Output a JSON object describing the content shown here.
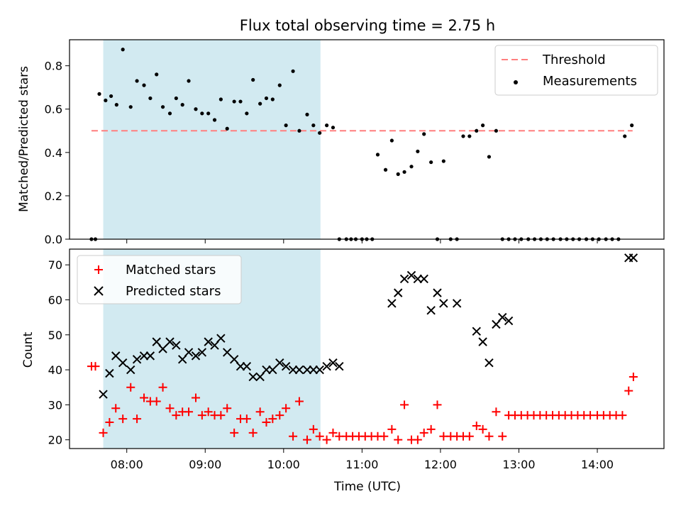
{
  "chart_data": [
    {
      "type": "scatter",
      "title": "Flux total observing time = 2.75 h",
      "ylabel": "Matched/Predicted stars",
      "xlabel": "",
      "xlim": [
        7.27,
        14.85
      ],
      "ylim": [
        0,
        0.92
      ],
      "yticks": [
        "0.0",
        "0.2",
        "0.4",
        "0.6",
        "0.8"
      ],
      "ytick_values": [
        0,
        0.2,
        0.4,
        0.6,
        0.8
      ],
      "xtick_values": [
        8,
        9,
        10,
        11,
        12,
        13,
        14
      ],
      "shaded_region": {
        "x_start": 7.7,
        "x_end": 10.47,
        "color": "#add8e6"
      },
      "legend_position": "top-right",
      "grid": false,
      "threshold": {
        "name": "Threshold",
        "value": 0.5,
        "x_range": [
          7.55,
          14.45
        ],
        "color": "#ff7f7f",
        "style": "dashed"
      },
      "series": [
        {
          "name": "Measurements",
          "color": "#000000",
          "marker": "dot",
          "x": [
            7.55,
            7.6,
            7.65,
            7.73,
            7.8,
            7.87,
            7.95,
            8.05,
            8.13,
            8.22,
            8.3,
            8.38,
            8.46,
            8.55,
            8.63,
            8.71,
            8.79,
            8.88,
            8.96,
            9.04,
            9.12,
            9.2,
            9.28,
            9.37,
            9.45,
            9.53,
            9.61,
            9.7,
            9.78,
            9.86,
            9.95,
            10.03,
            10.12,
            10.2,
            10.3,
            10.38,
            10.46,
            10.55,
            10.63,
            10.71,
            10.8,
            10.86,
            10.92,
            11.0,
            11.06,
            11.13,
            11.2,
            11.3,
            11.38,
            11.46,
            11.54,
            11.63,
            11.71,
            11.79,
            11.88,
            11.96,
            12.04,
            12.13,
            12.21,
            12.29,
            12.37,
            12.46,
            12.54,
            12.62,
            12.71,
            12.79,
            12.87,
            12.95,
            13.03,
            13.12,
            13.2,
            13.28,
            13.36,
            13.44,
            13.53,
            13.61,
            13.69,
            13.77,
            13.86,
            13.94,
            14.02,
            14.11,
            14.19,
            14.27,
            14.35,
            14.44
          ],
          "y": [
            0,
            0,
            0.67,
            0.64,
            0.66,
            0.62,
            0.875,
            0.61,
            0.73,
            0.71,
            0.65,
            0.76,
            0.61,
            0.58,
            0.65,
            0.62,
            0.73,
            0.6,
            0.58,
            0.58,
            0.55,
            0.645,
            0.51,
            0.635,
            0.635,
            0.58,
            0.735,
            0.625,
            0.65,
            0.645,
            0.71,
            0.525,
            0.775,
            0.5,
            0.575,
            0.525,
            0.49,
            0.525,
            0.515,
            0,
            0,
            0,
            0,
            0,
            0,
            0,
            0.39,
            0.32,
            0.455,
            0.3,
            0.31,
            0.335,
            0.405,
            0.485,
            0.355,
            0,
            0.36,
            0,
            0,
            0.475,
            0.475,
            0.5,
            0.525,
            0.38,
            0.5,
            0,
            0,
            0,
            0,
            0,
            0,
            0,
            0,
            0,
            0,
            0,
            0,
            0,
            0,
            0,
            0,
            0,
            0,
            0,
            0.475,
            0.525
          ]
        }
      ]
    },
    {
      "type": "scatter",
      "title": "",
      "xlabel": "Time (UTC)",
      "ylabel": "Count",
      "xlim": [
        7.27,
        14.85
      ],
      "ylim": [
        17.5,
        74.5
      ],
      "yticks": [
        "20",
        "30",
        "40",
        "50",
        "60",
        "70"
      ],
      "ytick_values": [
        20,
        30,
        40,
        50,
        60,
        70
      ],
      "xticks": [
        "08:00",
        "09:00",
        "10:00",
        "11:00",
        "12:00",
        "13:00",
        "14:00"
      ],
      "xtick_values": [
        8,
        9,
        10,
        11,
        12,
        13,
        14
      ],
      "shaded_region": {
        "x_start": 7.7,
        "x_end": 10.47,
        "color": "#add8e6"
      },
      "legend_position": "top-left",
      "grid": false,
      "series": [
        {
          "name": "Matched stars",
          "color": "#ff0000",
          "marker": "plus",
          "x": [
            7.55,
            7.6,
            7.7,
            7.78,
            7.86,
            7.95,
            8.05,
            8.13,
            8.22,
            8.3,
            8.38,
            8.46,
            8.55,
            8.63,
            8.71,
            8.79,
            8.88,
            8.96,
            9.04,
            9.12,
            9.2,
            9.28,
            9.37,
            9.45,
            9.53,
            9.61,
            9.7,
            9.78,
            9.86,
            9.95,
            10.03,
            10.12,
            10.2,
            10.3,
            10.38,
            10.46,
            10.55,
            10.63,
            10.71,
            10.8,
            10.88,
            10.96,
            11.04,
            11.12,
            11.2,
            11.28,
            11.38,
            11.46,
            11.54,
            11.63,
            11.71,
            11.79,
            11.88,
            11.96,
            12.04,
            12.13,
            12.21,
            12.29,
            12.37,
            12.46,
            12.54,
            12.62,
            12.71,
            12.79,
            12.87,
            12.95,
            13.03,
            13.11,
            13.19,
            13.27,
            13.35,
            13.43,
            13.51,
            13.59,
            13.67,
            13.75,
            13.83,
            13.91,
            14.0,
            14.08,
            14.16,
            14.24,
            14.32,
            14.4,
            14.46
          ],
          "y": [
            41,
            41,
            22,
            25,
            29,
            26,
            35,
            26,
            32,
            31,
            31,
            35,
            29,
            27,
            28,
            28,
            32,
            27,
            28,
            27,
            27,
            29,
            22,
            26,
            26,
            22,
            28,
            25,
            26,
            27,
            29,
            21,
            31,
            20,
            23,
            21,
            20,
            22,
            21,
            21,
            21,
            21,
            21,
            21,
            21,
            21,
            23,
            20,
            30,
            20,
            20,
            22,
            23,
            30,
            21,
            21,
            21,
            21,
            21,
            24,
            23,
            21,
            28,
            21,
            27,
            27,
            27,
            27,
            27,
            27,
            27,
            27,
            27,
            27,
            27,
            27,
            27,
            27,
            27,
            27,
            27,
            27,
            27,
            34,
            38
          ]
        },
        {
          "name": "Predicted stars",
          "color": "#000000",
          "marker": "x",
          "x": [
            7.7,
            7.78,
            7.86,
            7.95,
            8.05,
            8.13,
            8.22,
            8.3,
            8.38,
            8.46,
            8.55,
            8.63,
            8.71,
            8.79,
            8.88,
            8.96,
            9.04,
            9.12,
            9.2,
            9.28,
            9.37,
            9.45,
            9.53,
            9.61,
            9.7,
            9.78,
            9.86,
            9.95,
            10.03,
            10.12,
            10.2,
            10.3,
            10.38,
            10.46,
            10.55,
            10.63,
            10.71,
            11.38,
            11.46,
            11.54,
            11.63,
            11.71,
            11.79,
            11.88,
            11.96,
            12.04,
            12.21,
            12.46,
            12.54,
            12.62,
            12.71,
            12.79,
            12.87,
            14.4,
            14.46
          ],
          "y": [
            33,
            39,
            44,
            42,
            40,
            43,
            44,
            44,
            48,
            46,
            48,
            47,
            43,
            45,
            44,
            45,
            48,
            47,
            49,
            45,
            43,
            41,
            41,
            38,
            38,
            40,
            40,
            42,
            41,
            40,
            40,
            40,
            40,
            40,
            41,
            42,
            41,
            59,
            62,
            66,
            67,
            66,
            66,
            57,
            62,
            59,
            59,
            51,
            48,
            42,
            53,
            55,
            54,
            72,
            72
          ]
        }
      ]
    }
  ]
}
